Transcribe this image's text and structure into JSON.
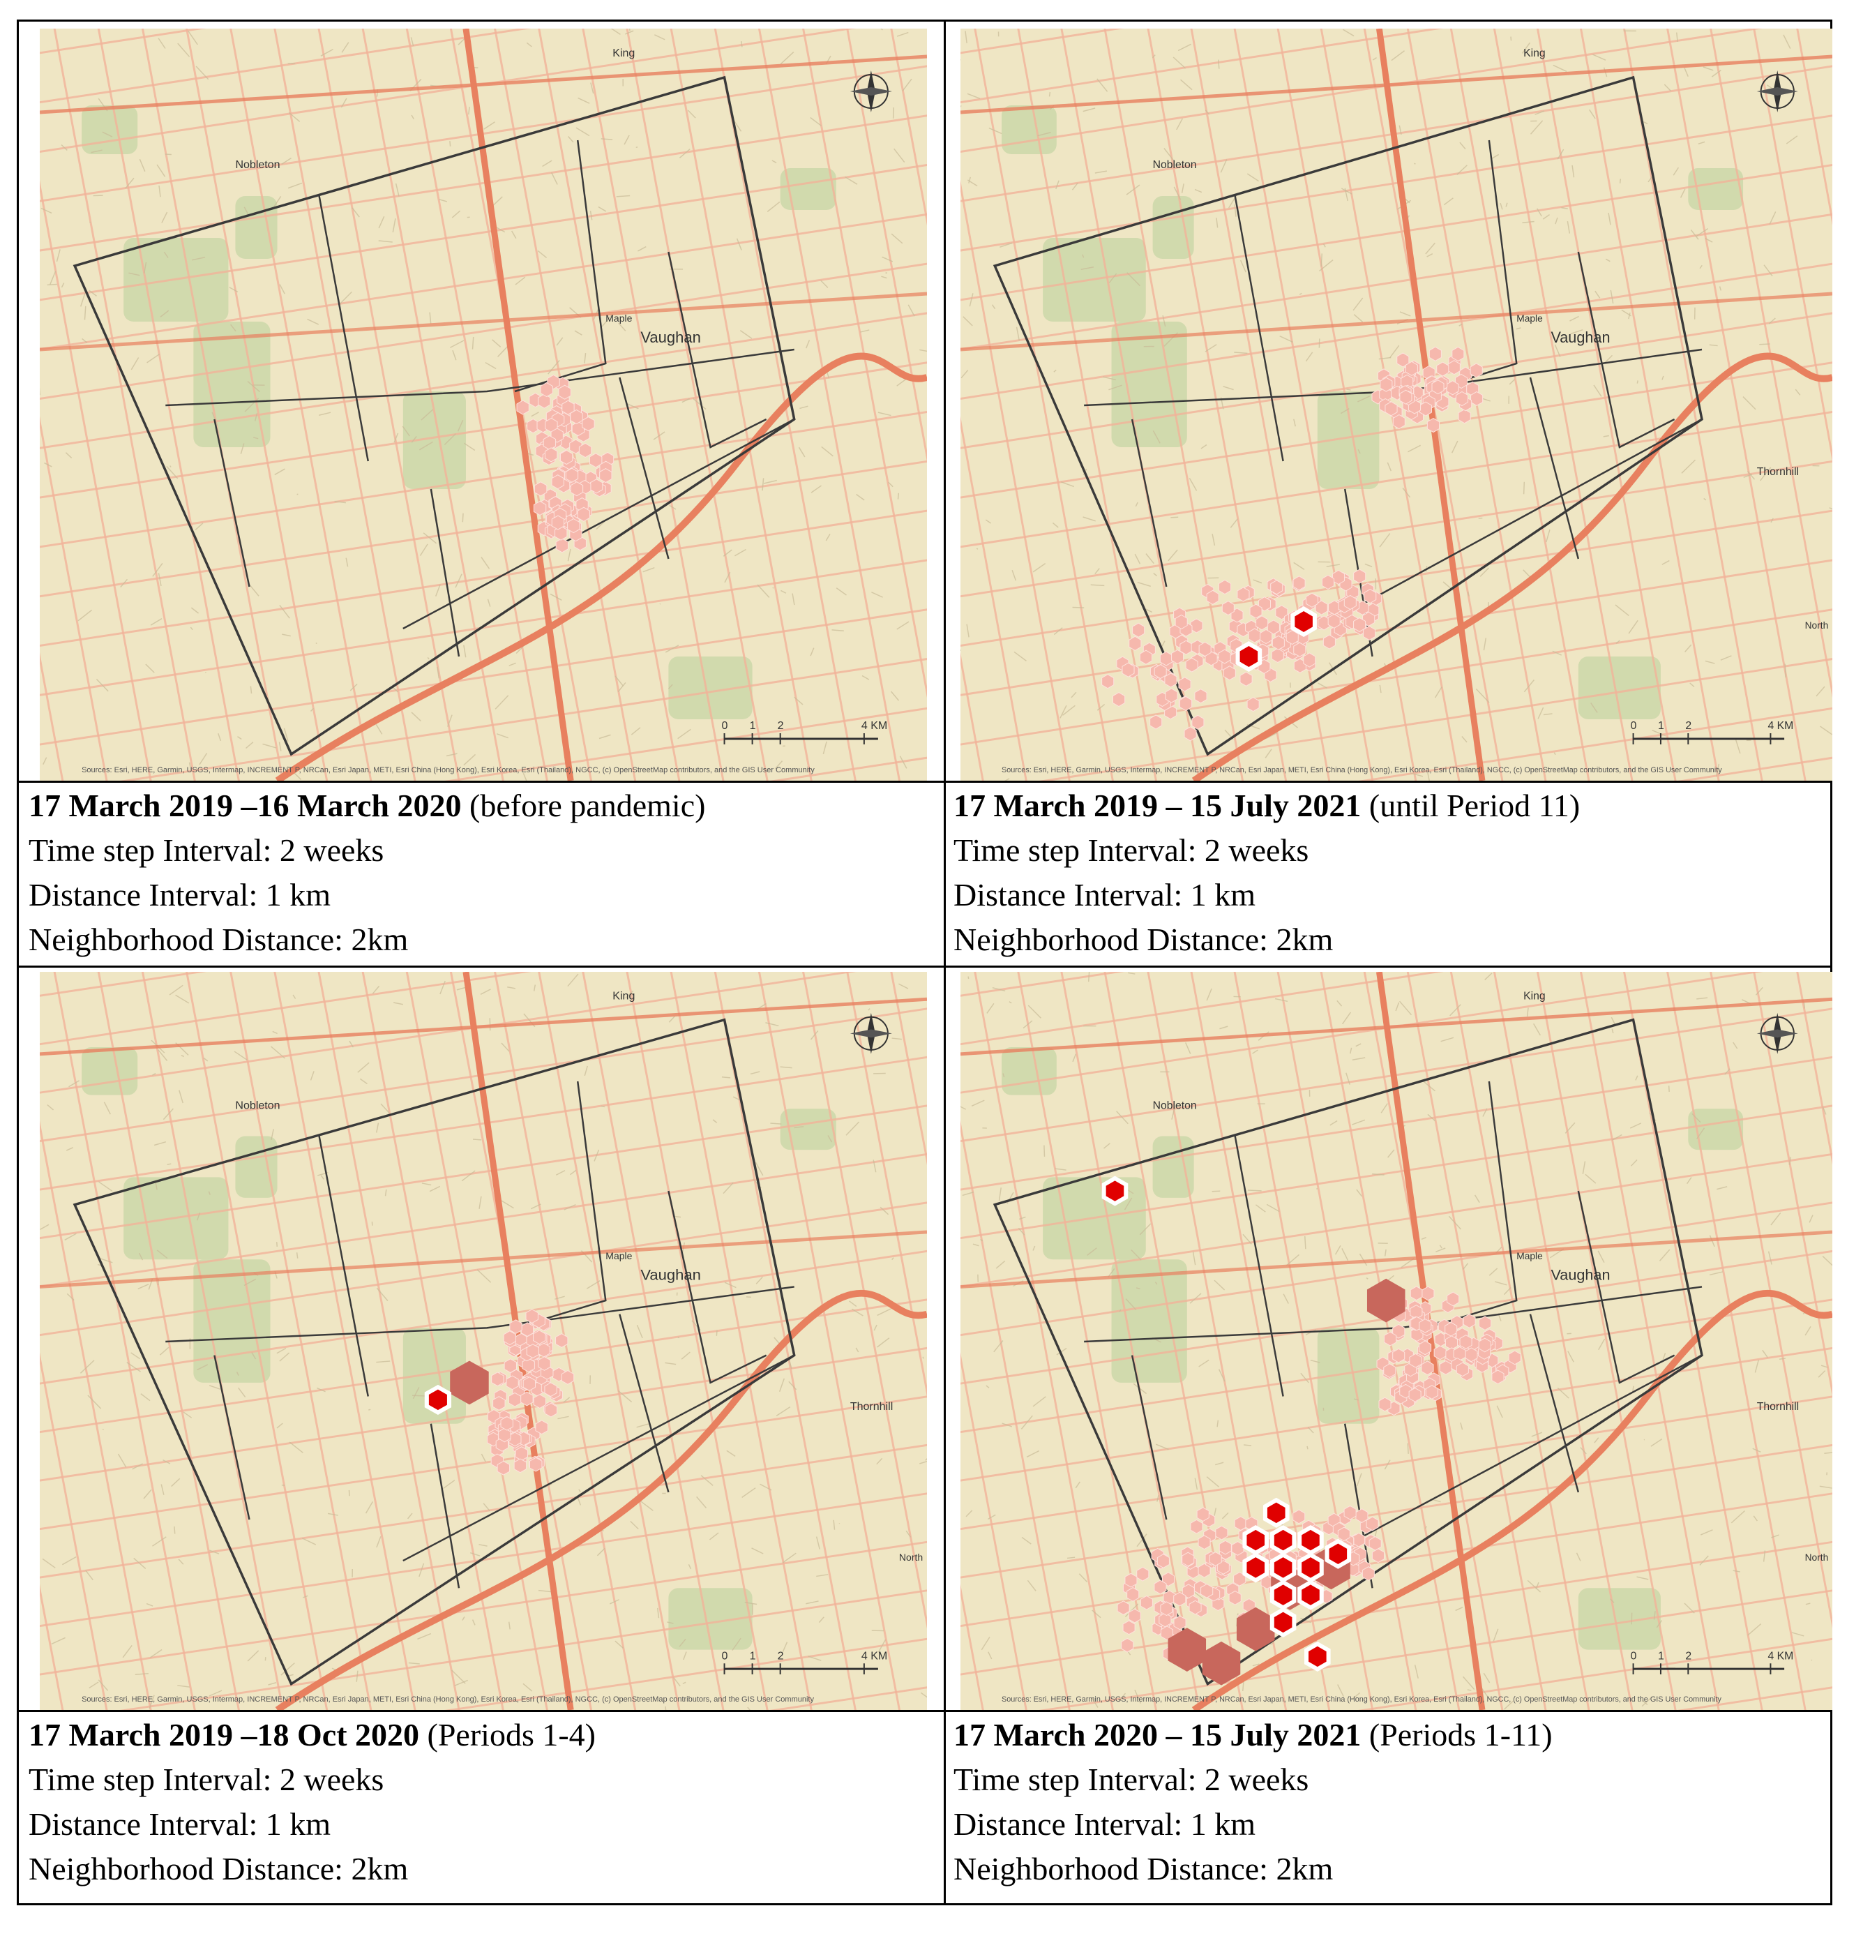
{
  "panels": [
    {
      "title_bold": "17 March 2019 –16 March 2020",
      "title_rest": " (before pandemic)",
      "time_step": "Time step Interval: 2 weeks",
      "distance": "Distance Interval: 1 km",
      "neighborhood": "Neighborhood Distance: 2km",
      "show_vaughan": true,
      "show_thornhill": false
    },
    {
      "title_bold": "17 March 2019 – 15 July 2021",
      "title_rest": " (until Period 11)",
      "time_step": "Time step Interval: 2 weeks",
      "distance": "Distance Interval: 1 km",
      "neighborhood": "Neighborhood Distance: 2km",
      "show_vaughan": true,
      "show_thornhill": true
    },
    {
      "title_bold": "17 March 2019 –18 Oct 2020",
      "title_rest": " (Periods 1-4)",
      "time_step": "Time step Interval: 2 weeks",
      "distance": "Distance Interval: 1 km",
      "neighborhood": "Neighborhood Distance: 2km",
      "show_vaughan": true,
      "show_thornhill": true
    },
    {
      "title_bold": "17 March 2020 – 15 July 2021",
      "title_rest": " (Periods 1-11)",
      "time_step": "Time step Interval: 2 weeks",
      "distance": "Distance Interval: 1 km",
      "neighborhood": "Neighborhood Distance: 2km",
      "show_vaughan": true,
      "show_thornhill": true
    }
  ],
  "map_labels": {
    "vaughan": "Vaughan",
    "maple": "Maple",
    "king": "King",
    "nobleton": "Nobleton",
    "thornhill": "Thornhill",
    "north": "North"
  },
  "scale_bar": {
    "ticks": [
      "0",
      "1",
      "2",
      "4 KM"
    ]
  },
  "attribution": "Sources: Esri, HERE, Garmin, USGS, Intermap, INCREMENT P, NRCan, Esri Japan, METI, Esri China (Hong Kong), Esri Korea, Esri (Thailand), NGCC, (c) OpenStreetMap contributors, and the GIS User Community",
  "colors": {
    "land": "#efe6c4",
    "park": "#c9d7a8",
    "road_major": "#e8805f",
    "road_minor": "#f2b49a",
    "boundary": "#3a3a3a",
    "hotspot_light": "#f6b8ad",
    "hotspot_medium": "#c8675c",
    "hotspot_dot": "#e00000"
  }
}
